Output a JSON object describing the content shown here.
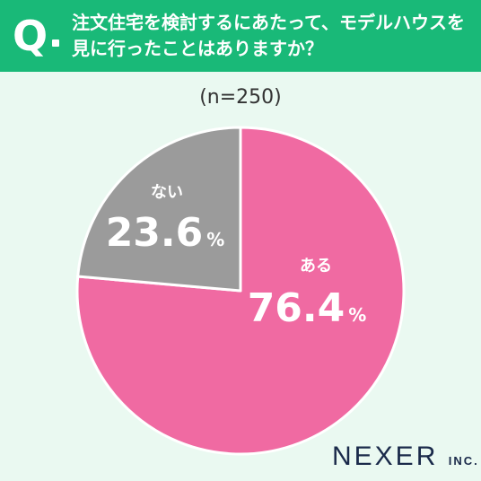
{
  "header": {
    "q_mark": "Q",
    "question": "注文住宅を検討するにあたって、モデルハウスを\n見に行ったことはありますか？"
  },
  "sample_label": "(n=250)",
  "chart_data": {
    "type": "pie",
    "n": 250,
    "slices": [
      {
        "label": "ある",
        "value": 76.4,
        "value_text": "76.4",
        "color": "#f06aa2"
      },
      {
        "label": "ない",
        "value": 23.6,
        "value_text": "23.6",
        "color": "#9b9b9b"
      }
    ],
    "unit": "%",
    "start_angle": "12 o'clock",
    "direction": "clockwise"
  },
  "logo": {
    "main": "NEXER",
    "suffix": "INC."
  },
  "colors": {
    "header_bg": "#19b978",
    "page_bg": "#eaf9f1",
    "slice_yes": "#f06aa2",
    "slice_no": "#9b9b9b"
  }
}
